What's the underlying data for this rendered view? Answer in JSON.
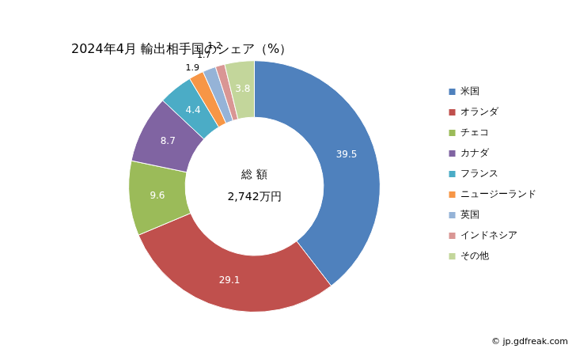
{
  "chart_data": {
    "type": "doughnut",
    "title": "2024年4月 輸出相手国のシェア（%）",
    "categories": [
      "米国",
      "オランダ",
      "チェコ",
      "カナダ",
      "フランス",
      "ニュージーランド",
      "英国",
      "インドネシア",
      "その他"
    ],
    "values": [
      39.5,
      29.1,
      9.6,
      8.7,
      4.4,
      1.9,
      1.7,
      1.2,
      3.8
    ],
    "colors": [
      "#4F81BD",
      "#C0504D",
      "#9BBB59",
      "#8064A2",
      "#4BACC6",
      "#F79646",
      "#95B3D7",
      "#D99694",
      "#C3D69B"
    ],
    "data_labels": true,
    "legend": "right",
    "annotations": [
      "総 額",
      "2,742万円"
    ],
    "source": "© jp.gdfreak.com"
  }
}
